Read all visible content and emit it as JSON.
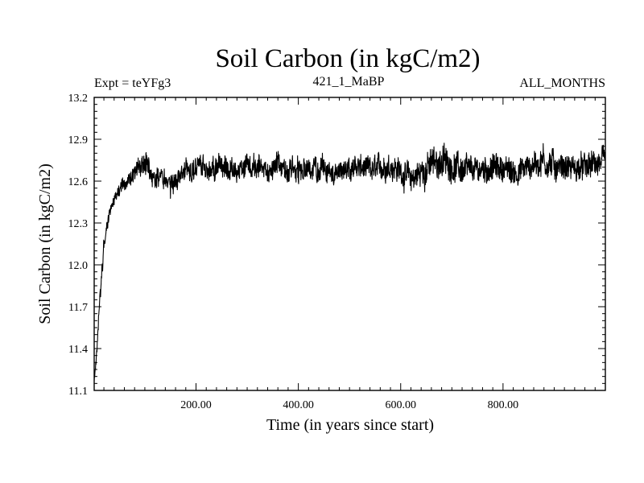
{
  "chart_data": {
    "type": "line",
    "title": "Soil Carbon (in kgC/m2)",
    "subtitle_left": "Expt = teYFg3",
    "subtitle_center": "421_1_MaBP",
    "subtitle_right": "ALL_MONTHS",
    "xlabel": "Time (in years since start)",
    "ylabel": "Soil Carbon (in kgC/m2)",
    "xlim": [
      1,
      1000
    ],
    "ylim": [
      11.1,
      13.2
    ],
    "x_ticks": [
      200,
      400,
      600,
      800
    ],
    "x_tick_labels": [
      "200.00",
      "400.00",
      "600.00",
      "800.00"
    ],
    "y_ticks": [
      11.1,
      11.4,
      11.7,
      12.0,
      12.3,
      12.6,
      12.9,
      13.2
    ],
    "y_tick_labels": [
      "11.1",
      "11.4",
      "11.7",
      "12.0",
      "12.3",
      "12.6",
      "12.9",
      "13.2"
    ],
    "series": [
      {
        "name": "Soil Carbon",
        "color": "#000000",
        "description": "noisy annual series; rapid spin-up from ~11.1 to ~12.6 in first ~60 years, then fluctuates around 12.7 (band ~12.5–12.9)",
        "envelope": {
          "x": [
            1,
            5,
            10,
            20,
            30,
            40,
            50,
            60,
            70,
            80,
            90,
            100,
            110,
            120,
            130,
            140,
            150,
            160,
            170,
            180,
            190,
            200,
            220,
            240,
            260,
            280,
            300,
            320,
            340,
            360,
            380,
            400,
            420,
            440,
            460,
            480,
            500,
            520,
            540,
            560,
            580,
            600,
            620,
            640,
            660,
            680,
            700,
            720,
            740,
            760,
            780,
            800,
            820,
            840,
            860,
            880,
            900,
            920,
            940,
            960,
            980,
            1000
          ],
          "low": [
            11.12,
            11.25,
            11.55,
            12.05,
            12.28,
            12.4,
            12.46,
            12.5,
            12.52,
            12.55,
            12.57,
            12.55,
            12.53,
            12.52,
            12.5,
            12.47,
            12.44,
            12.48,
            12.52,
            12.55,
            12.56,
            12.57,
            12.55,
            12.56,
            12.53,
            12.55,
            12.56,
            12.54,
            12.53,
            12.52,
            12.54,
            12.53,
            12.55,
            12.52,
            12.54,
            12.55,
            12.53,
            12.55,
            12.52,
            12.55,
            12.56,
            12.52,
            12.45,
            12.48,
            12.52,
            12.55,
            12.55,
            12.5,
            12.52,
            12.54,
            12.53,
            12.55,
            12.5,
            12.53,
            12.56,
            12.55,
            12.54,
            12.55,
            12.53,
            12.54,
            12.56,
            12.57
          ],
          "high": [
            11.2,
            11.4,
            11.75,
            12.25,
            12.42,
            12.55,
            12.62,
            12.66,
            12.7,
            12.76,
            12.82,
            12.9,
            12.82,
            12.76,
            12.74,
            12.72,
            12.7,
            12.73,
            12.76,
            12.8,
            12.86,
            12.9,
            12.84,
            12.86,
            12.84,
            12.82,
            12.84,
            12.86,
            12.82,
            12.84,
            12.82,
            12.88,
            12.86,
            12.84,
            12.82,
            12.8,
            12.82,
            12.84,
            12.82,
            12.84,
            12.88,
            12.82,
            12.78,
            12.84,
            12.92,
            12.94,
            12.88,
            12.86,
            12.82,
            12.84,
            12.86,
            12.84,
            12.82,
            12.84,
            12.88,
            12.95,
            12.88,
            12.86,
            12.84,
            12.85,
            12.88,
            12.89
          ]
        }
      }
    ]
  }
}
